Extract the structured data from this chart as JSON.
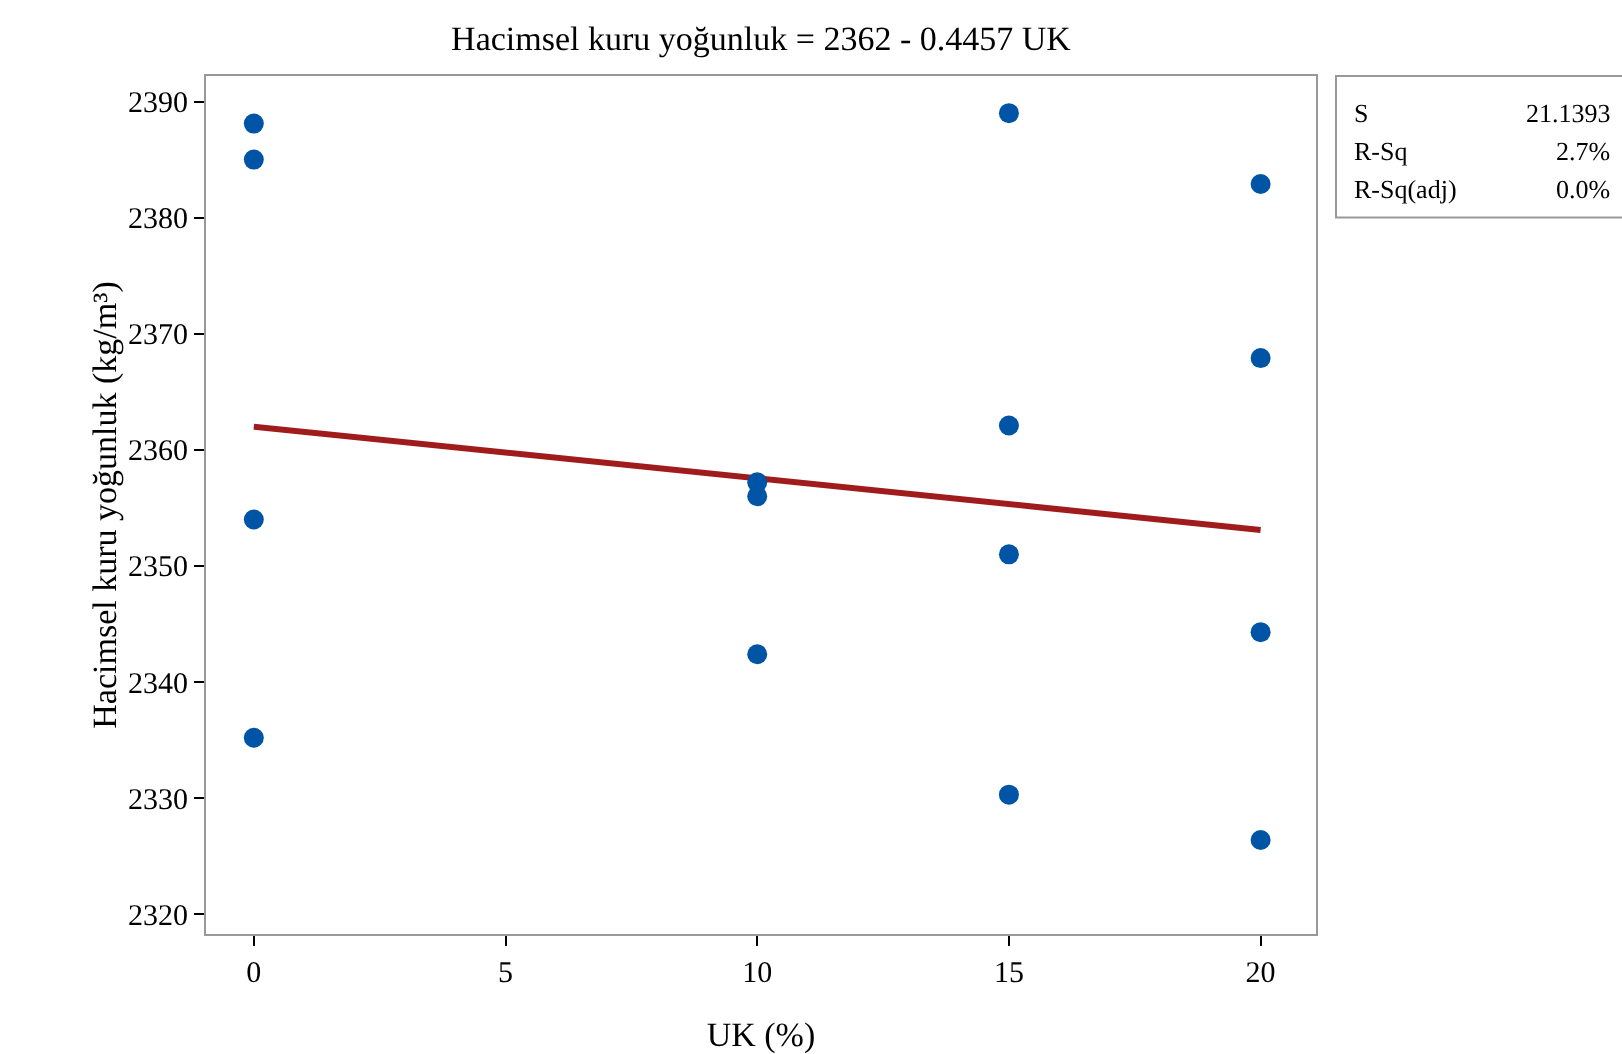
{
  "chart_data": {
    "type": "scatter",
    "title": "Hacimsel kuru yoğunluk = 2362 - 0.4457 UK",
    "xlabel": "UK (%)",
    "ylabel": "Hacimsel kuru yoğunluk (kg/m³)",
    "xlim": [
      -0.95,
      21.1
    ],
    "xticks": [
      0,
      5,
      10,
      15,
      20
    ],
    "ylim": [
      2318.3,
      2392.2
    ],
    "yticks": [
      2320,
      2330,
      2340,
      2350,
      2360,
      2370,
      2380,
      2390
    ],
    "grid": false,
    "marker": "circle",
    "series": [
      {
        "color": "#0054a6",
        "x": [
          0,
          0,
          0,
          0,
          10,
          10,
          10,
          15,
          15,
          15,
          15,
          20,
          20,
          20,
          20
        ],
        "values": [
          2388.1,
          2385.0,
          2354.0,
          2335.2,
          2357.2,
          2356.0,
          2342.4,
          2389.0,
          2362.1,
          2351.0,
          2330.3,
          2382.9,
          2367.9,
          2344.3,
          2326.4
        ]
      },
      {
        "type": "line",
        "color": "#a01c1c",
        "x": [
          0,
          20
        ],
        "values": [
          2362,
          2353.1
        ],
        "marker": "none",
        "line_style": "solid"
      }
    ],
    "annotations": [
      "S 21.1393",
      "R-Sq 2.7%",
      "R-Sq(adj) 0.0%"
    ]
  }
}
